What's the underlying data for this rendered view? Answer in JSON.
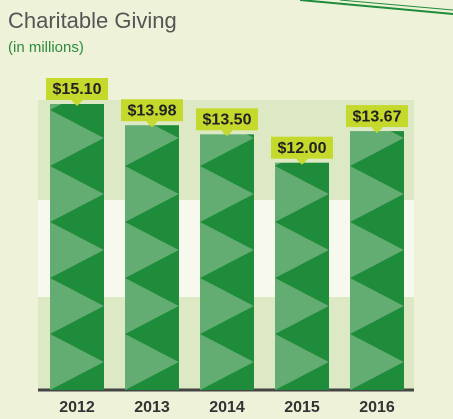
{
  "chart_data": {
    "type": "bar",
    "title": "Charitable Giving",
    "subtitle": "(in millions)",
    "categories": [
      "2012",
      "2013",
      "2014",
      "2015",
      "2016"
    ],
    "values": [
      15.1,
      13.98,
      13.5,
      12.0,
      13.67
    ],
    "value_labels": [
      "$15.10",
      "$13.98",
      "$13.50",
      "$12.00",
      "$13.67"
    ],
    "color": "#1e8c3a",
    "label_color": "#c5d92d"
  }
}
